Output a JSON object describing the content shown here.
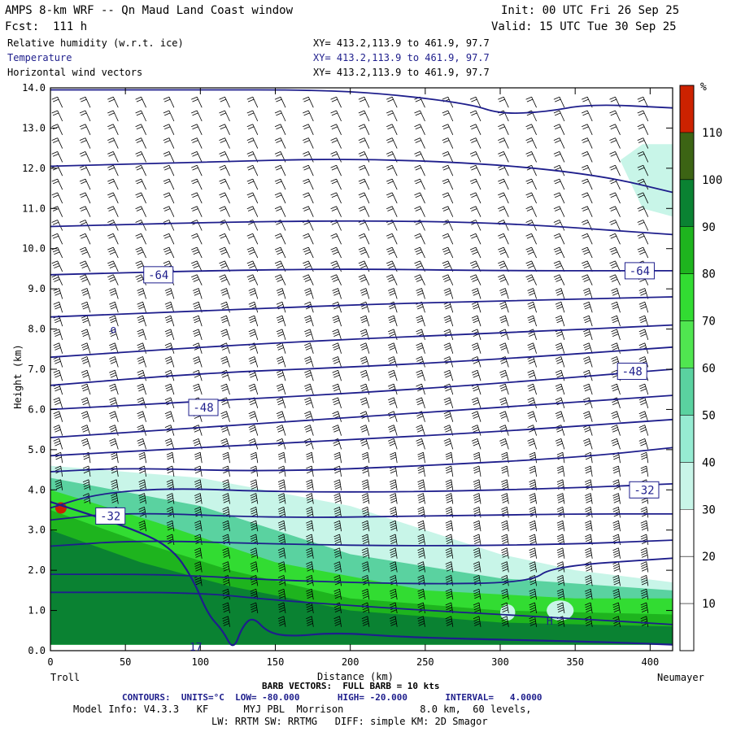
{
  "header": {
    "title": "AMPS 8-km WRF -- Qn Maud Land Coast window",
    "init": "Init: 00 UTC Fri 26 Sep 25",
    "fcst": "Fcst:  111 h",
    "valid": "Valid: 15 UTC Tue 30 Sep 25",
    "fields": [
      {
        "label": "Relative humidity (w.r.t. ice)",
        "xy": "XY= 413.2,113.9 to 461.9, 97.7"
      },
      {
        "label": "Temperature",
        "xy": "XY= 413.2,113.9 to 461.9, 97.7"
      },
      {
        "label": "Horizontal wind vectors",
        "xy": "XY= 413.2,113.9 to 461.9, 97.7"
      }
    ]
  },
  "chart_data": {
    "type": "heatmap",
    "xlabel": "Distance (km)",
    "ylabel": "Height (km)",
    "xlim": [
      0,
      415
    ],
    "ylim": [
      0,
      14
    ],
    "x_ticks": [
      "0",
      "50",
      "100",
      "150",
      "200",
      "250",
      "300",
      "350",
      "400"
    ],
    "y_ticks": [
      "0.0",
      "1.0",
      "2.0",
      "3.0",
      "4.0",
      "5.0",
      "6.0",
      "7.0",
      "8.0",
      "9.0",
      "10.0",
      "11.0",
      "12.0",
      "13.0",
      "14.0"
    ],
    "endpoints": {
      "left": "Troll",
      "right": "Neumayer"
    },
    "colorbar": {
      "unit": "%",
      "levels": [
        "10",
        "20",
        "30",
        "40",
        "50",
        "60",
        "70",
        "80",
        "90",
        "100",
        "110"
      ],
      "colors": [
        "#ffffff",
        "#ffffff",
        "#ffffff",
        "#c8f5e8",
        "#96ebd2",
        "#5ad2a0",
        "#50e650",
        "#32dc32",
        "#1eb41e",
        "#0a8232",
        "#3c6414",
        "#cc2200"
      ]
    },
    "contour_labels": [
      {
        "text": "-64",
        "x": 72,
        "y": 9.35
      },
      {
        "text": "-64",
        "x": 393,
        "y": 9.45
      },
      {
        "text": "-48",
        "x": 102,
        "y": 6.05
      },
      {
        "text": "-48",
        "x": 388,
        "y": 6.95
      },
      {
        "text": "-32",
        "x": 40,
        "y": 3.35
      },
      {
        "text": "-32",
        "x": 396,
        "y": 4.0
      }
    ],
    "contours": [
      [
        [
          0,
          12.05
        ],
        [
          100,
          12.15
        ],
        [
          200,
          12.25
        ],
        [
          300,
          12.1
        ],
        [
          370,
          11.8
        ],
        [
          415,
          11.4
        ]
      ],
      [
        [
          0,
          10.55
        ],
        [
          100,
          10.65
        ],
        [
          200,
          10.7
        ],
        [
          300,
          10.65
        ],
        [
          415,
          10.35
        ]
      ],
      [
        [
          0,
          9.35
        ],
        [
          100,
          9.45
        ],
        [
          200,
          9.5
        ],
        [
          300,
          9.45
        ],
        [
          415,
          9.45
        ]
      ],
      [
        [
          0,
          8.3
        ],
        [
          100,
          8.45
        ],
        [
          200,
          8.6
        ],
        [
          300,
          8.7
        ],
        [
          415,
          8.8
        ]
      ],
      [
        [
          0,
          7.3
        ],
        [
          100,
          7.55
        ],
        [
          200,
          7.75
        ],
        [
          300,
          7.9
        ],
        [
          415,
          8.1
        ]
      ],
      [
        [
          0,
          6.6
        ],
        [
          100,
          6.9
        ],
        [
          200,
          7.05
        ],
        [
          300,
          7.25
        ],
        [
          415,
          7.55
        ]
      ],
      [
        [
          0,
          6.0
        ],
        [
          100,
          6.2
        ],
        [
          200,
          6.4
        ],
        [
          300,
          6.65
        ],
        [
          415,
          7.0
        ]
      ],
      [
        [
          0,
          5.3
        ],
        [
          100,
          5.55
        ],
        [
          200,
          5.8
        ],
        [
          300,
          6.05
        ],
        [
          415,
          6.35
        ]
      ],
      [
        [
          0,
          4.85
        ],
        [
          100,
          5.05
        ],
        [
          200,
          5.25
        ],
        [
          300,
          5.45
        ],
        [
          415,
          5.75
        ]
      ],
      [
        [
          0,
          4.45
        ],
        [
          50,
          4.55
        ],
        [
          150,
          4.45
        ],
        [
          250,
          4.6
        ],
        [
          350,
          4.8
        ],
        [
          415,
          5.05
        ]
      ],
      [
        [
          0,
          3.55
        ],
        [
          30,
          3.9
        ],
        [
          80,
          4.05
        ],
        [
          150,
          3.95
        ],
        [
          250,
          3.95
        ],
        [
          350,
          4.05
        ],
        [
          415,
          4.15
        ]
      ],
      [
        [
          0,
          3.25
        ],
        [
          50,
          3.45
        ],
        [
          150,
          3.3
        ],
        [
          250,
          3.35
        ],
        [
          350,
          3.4
        ],
        [
          415,
          3.4
        ]
      ],
      [
        [
          0,
          2.6
        ],
        [
          60,
          2.75
        ],
        [
          150,
          2.65
        ],
        [
          250,
          2.6
        ],
        [
          350,
          2.65
        ],
        [
          415,
          2.75
        ]
      ],
      [
        [
          0,
          1.9
        ],
        [
          80,
          1.9
        ],
        [
          150,
          1.75
        ],
        [
          250,
          1.65
        ],
        [
          320,
          1.7
        ],
        [
          335,
          2.1
        ],
        [
          415,
          2.3
        ]
      ],
      [
        [
          0,
          1.45
        ],
        [
          100,
          1.45
        ],
        [
          150,
          1.25
        ],
        [
          250,
          1.0
        ],
        [
          350,
          0.8
        ],
        [
          415,
          0.65
        ]
      ],
      [
        [
          0,
          13.95
        ],
        [
          100,
          13.95
        ],
        [
          175,
          13.95
        ],
        [
          225,
          13.85
        ],
        [
          280,
          13.6
        ],
        [
          300,
          13.35
        ],
        [
          330,
          13.4
        ],
        [
          360,
          13.6
        ],
        [
          415,
          13.5
        ]
      ]
    ],
    "terrain": [
      [
        0,
        3.7
      ],
      [
        50,
        3.1
      ],
      [
        80,
        2.6
      ],
      [
        95,
        1.8
      ],
      [
        105,
        0.9
      ],
      [
        115,
        0.5
      ],
      [
        122,
        0.0
      ],
      [
        128,
        0.6
      ],
      [
        135,
        0.85
      ],
      [
        145,
        0.45
      ],
      [
        160,
        0.35
      ],
      [
        190,
        0.45
      ],
      [
        230,
        0.35
      ],
      [
        270,
        0.3
      ],
      [
        330,
        0.25
      ],
      [
        380,
        0.2
      ],
      [
        415,
        0.15
      ]
    ],
    "moisture_zones": [
      {
        "color": "#c8f5e8",
        "points": [
          [
            0,
            4.6
          ],
          [
            100,
            4.3
          ],
          [
            200,
            3.6
          ],
          [
            300,
            2.4
          ],
          [
            350,
            2.0
          ],
          [
            415,
            1.7
          ],
          [
            415,
            0.15
          ],
          [
            0,
            0.15
          ]
        ]
      },
      {
        "color": "#5ad2a0",
        "points": [
          [
            0,
            4.3
          ],
          [
            100,
            3.6
          ],
          [
            200,
            2.4
          ],
          [
            300,
            1.8
          ],
          [
            415,
            1.5
          ],
          [
            415,
            0.15
          ],
          [
            0,
            0.15
          ]
        ]
      },
      {
        "color": "#32dc32",
        "points": [
          [
            0,
            4.0
          ],
          [
            70,
            3.2
          ],
          [
            150,
            2.2
          ],
          [
            250,
            1.5
          ],
          [
            350,
            1.3
          ],
          [
            415,
            1.3
          ],
          [
            415,
            0.15
          ],
          [
            0,
            0.15
          ]
        ]
      },
      {
        "color": "#1eb41e",
        "points": [
          [
            0,
            3.5
          ],
          [
            60,
            2.7
          ],
          [
            120,
            2.0
          ],
          [
            200,
            1.3
          ],
          [
            300,
            1.0
          ],
          [
            415,
            0.9
          ],
          [
            415,
            0.15
          ],
          [
            0,
            0.15
          ]
        ]
      },
      {
        "color": "#0a8232",
        "points": [
          [
            0,
            3.0
          ],
          [
            60,
            2.2
          ],
          [
            120,
            1.6
          ],
          [
            200,
            1.0
          ],
          [
            300,
            0.7
          ],
          [
            415,
            0.6
          ],
          [
            415,
            0.15
          ],
          [
            0,
            0.15
          ]
        ]
      },
      {
        "color": "#c8f5e8",
        "points": [
          [
            380,
            12.2
          ],
          [
            395,
            12.6
          ],
          [
            415,
            12.6
          ],
          [
            415,
            10.8
          ],
          [
            395,
            11.0
          ]
        ]
      }
    ],
    "dry_pockets": [
      [
        340,
        1.0,
        18,
        0.5
      ],
      [
        305,
        0.95,
        10,
        0.4
      ]
    ],
    "saturated_point": {
      "x": 7,
      "y": 3.55
    },
    "extra_markers": [
      {
        "text": "H",
        "x": 333,
        "y": 0.65
      },
      {
        "text": "o",
        "x": 42,
        "y": 7.9
      },
      {
        "text": "17",
        "x": 97,
        "y": 0.0
      }
    ]
  },
  "footer": {
    "barb": "BARB VECTORS:  FULL BARB = 10 kts",
    "contours": "CONTOURS:  UNITS=°C  LOW= -80.000       HIGH= -20.000       INTERVAL=   4.0000",
    "model1": "Model Info: V4.3.3   KF      MYJ PBL  Morrison             8.0 km,  60 levels,",
    "model2": "LW: RRTM SW: RRTMG   DIFF: simple KM: 2D Smagor"
  }
}
